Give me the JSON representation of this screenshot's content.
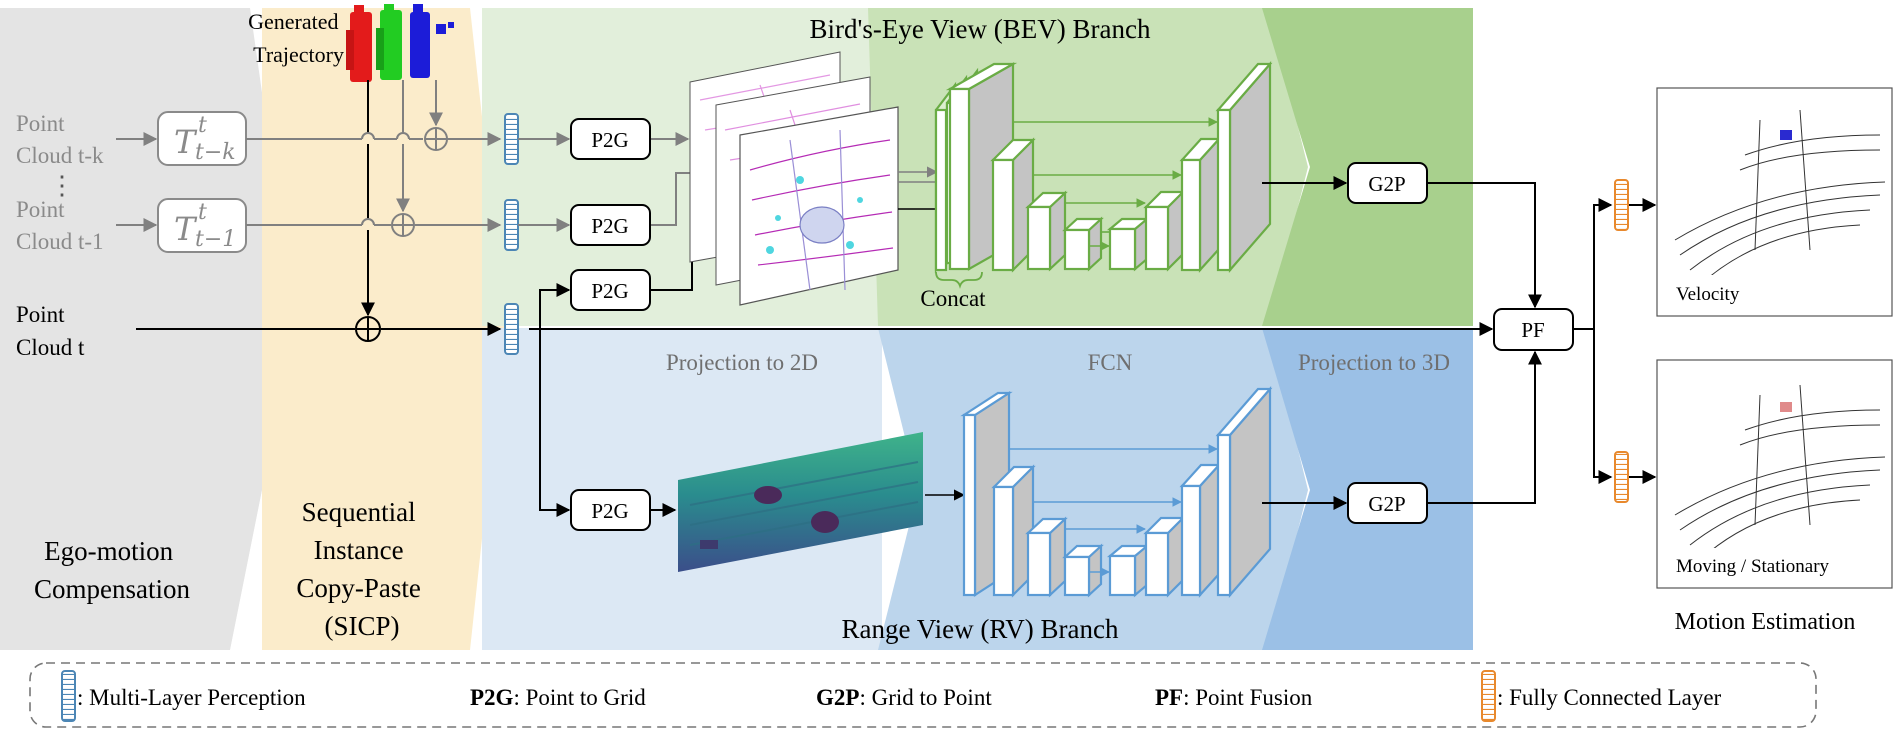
{
  "sections": {
    "ego": "Ego-motion\nCompensation",
    "sicp": "Sequential\nInstance\nCopy-Paste\n(SICP)",
    "bev_branch": "Bird's-Eye View (BEV) Branch",
    "rv_branch": "Range View (RV) Branch",
    "proj2d": "Projection to 2D",
    "fcn": "FCN",
    "proj3d": "Projection to 3D",
    "motion_estimation": "Motion Estimation"
  },
  "inputs": {
    "cloud_tk": "Point\nCloud t-k",
    "dots": "⋮",
    "cloud_t1": "Point\nCloud t-1",
    "cloud_t": "Point\nCloud t"
  },
  "transforms": {
    "tk": {
      "base": "T",
      "sup": "t",
      "sub": "t−k"
    },
    "t1": {
      "base": "T",
      "sup": "t",
      "sub": "t−1"
    }
  },
  "generated_trajectory": "Generated\nTrajectory",
  "blocks": {
    "p2g": "P2G",
    "g2p": "G2P",
    "pf": "PF"
  },
  "concat": "Concat",
  "outputs": {
    "velocity": "Velocity",
    "moving_stationary": "Moving / Stationary"
  },
  "legend": {
    "mlp": ": Multi-Layer Perception",
    "p2g_key": "P2G",
    "p2g_desc": ": Point to Grid",
    "g2p_key": "G2P",
    "g2p_desc": ": Grid to Point",
    "pf_key": "PF",
    "pf_desc": ": Point Fusion",
    "fc": ": Fully Connected Layer"
  },
  "colors": {
    "ego_bg": "#e4e4e4",
    "sicp_bg": "#fbeccb",
    "bev_light": "#e2efdb",
    "bev_mid": "#c9e2b7",
    "bev_dark": "#a8d08d",
    "rv_light": "#dce8f4",
    "rv_mid": "#bcd5ec",
    "rv_dark": "#9bc0e6",
    "green_net": "#6aac45",
    "blue_net": "#5b9bd5",
    "mlp": "#4c86b5",
    "fc": "#e8892d"
  }
}
